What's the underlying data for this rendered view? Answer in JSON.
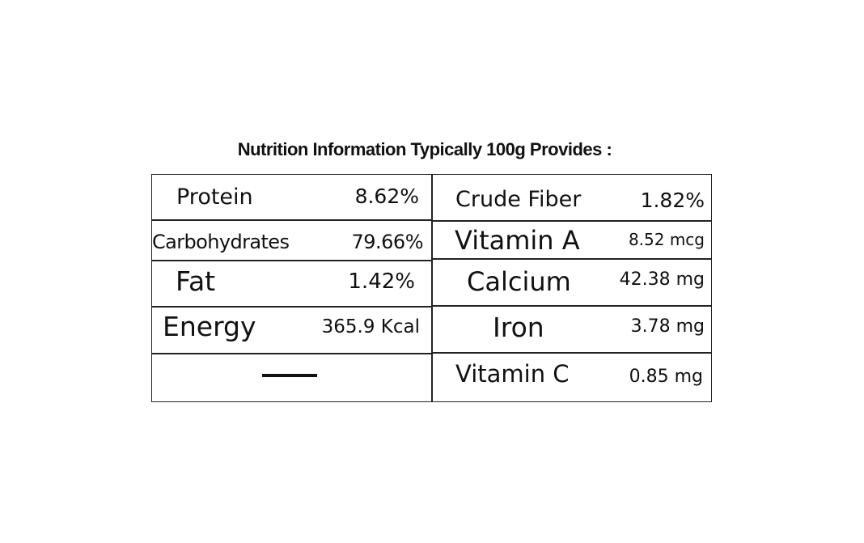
{
  "title": "Nutrition Information Typically 100g Provides :",
  "left_rows": [
    {
      "name": "Protein",
      "value": "8.62%"
    },
    {
      "name": "Carbohydrates",
      "value": "79.66%"
    },
    {
      "name": "Fat",
      "value": "1.42%"
    },
    {
      "name": "Energy",
      "value": "365.9 Kcal"
    }
  ],
  "right_rows": [
    {
      "name": "Crude Fiber",
      "value": "1.82%"
    },
    {
      "name": "Vitamin A",
      "value": "8.52 mcg"
    },
    {
      "name": "Calcium",
      "value": "42.38 mg"
    },
    {
      "name": "Iron",
      "value": "3.78 mg"
    },
    {
      "name": "Vitamin C",
      "value": "0.85 mg"
    }
  ],
  "empty_cell_symbol": "dash"
}
